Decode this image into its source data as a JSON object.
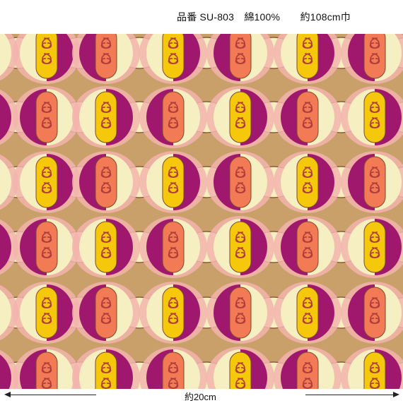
{
  "header": {
    "text": "品番 SU-803　綿100%　　約108cm巾"
  },
  "scale": {
    "label": "約20cm"
  },
  "fabric": {
    "background": "#c9a069",
    "colors": {
      "magenta": "#a0186e",
      "cream": "#f6efc2",
      "yellow": "#f5c80c",
      "coral": "#f27a55",
      "pink": "#f2b4ad",
      "outline": "#7a4a2c",
      "scroll": "#b03c3c"
    }
  }
}
